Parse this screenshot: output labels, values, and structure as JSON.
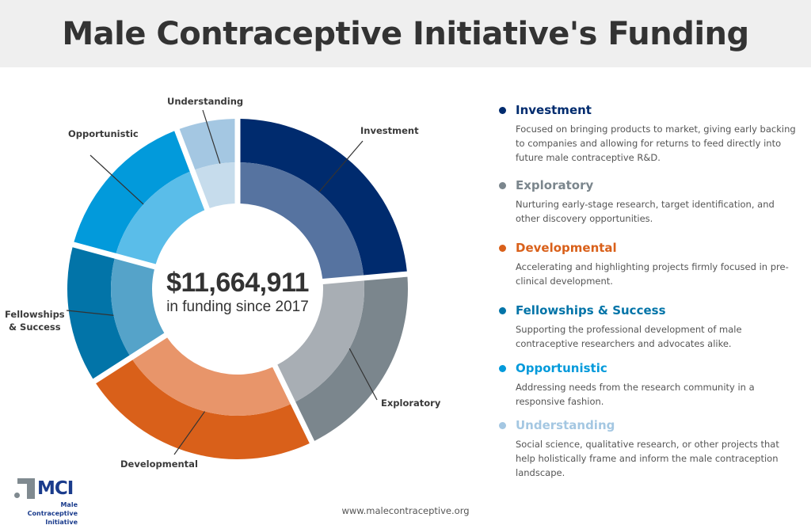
{
  "header": {
    "title": "Male Contraceptive Initiative's Funding"
  },
  "center": {
    "amount": "$11,664,911",
    "subtitle": "in funding since 2017"
  },
  "chart_data": {
    "type": "pie",
    "variant": "donut",
    "title": "Male Contraceptive Initiative's Funding",
    "total_label": "$11,664,911",
    "unit": "share of total (approx. %, read from arc angles)",
    "categories": [
      "Investment",
      "Exploratory",
      "Developmental",
      "Fellowships & Success",
      "Opportunistic",
      "Understanding"
    ],
    "values": [
      23.6,
      19.2,
      23.1,
      13.3,
      15.0,
      5.8
    ],
    "start_angle_deg": 0,
    "direction": "clockwise",
    "colors": {
      "outer": [
        "#002b6e",
        "#7b868d",
        "#d9601a",
        "#0274a8",
        "#029adb",
        "#a4c7e2"
      ],
      "inner": [
        "#5673a0",
        "#a8aeb4",
        "#e8956a",
        "#55a3c9",
        "#5abde9",
        "#c6dcec"
      ]
    },
    "legend_placement": "right"
  },
  "legend": [
    {
      "title": "Investment",
      "color": "#002b6e",
      "desc": "Focused on bringing products to market, giving early backing to companies and allowing for returns to feed directly into future male contraceptive R&D."
    },
    {
      "title": "Exploratory",
      "color": "#7b868d",
      "desc": "Nurturing early-stage research, target identification, and other discovery opportunities."
    },
    {
      "title": "Developmental",
      "color": "#d9601a",
      "desc": "Accelerating and highlighting projects firmly focused in pre-clinical development."
    },
    {
      "title": "Fellowships & Success",
      "color": "#0274a8",
      "desc": "Supporting the professional development of male contraceptive researchers and advocates alike."
    },
    {
      "title": "Opportunistic",
      "color": "#029adb",
      "desc": "Addressing needs from the research community in a responsive fashion."
    },
    {
      "title": "Understanding",
      "color": "#a4c7e2",
      "desc": "Social science, qualitative research, or other projects that help holistically frame and inform the male contraception landscape."
    }
  ],
  "segment_labels": {
    "investment": "Investment",
    "exploratory": "Exploratory",
    "developmental": "Developmental",
    "fellowships_line1": "Fellowships",
    "fellowships_line2": "& Success",
    "opportunistic": "Opportunistic",
    "understanding": "Understanding"
  },
  "footer": {
    "url": "www.malecontraceptive.org",
    "logo_text": "MCI",
    "logo_sub_line1": "Male Contraceptive",
    "logo_sub_line2": "Initiative"
  }
}
